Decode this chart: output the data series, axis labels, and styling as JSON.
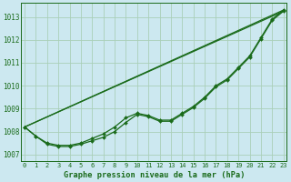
{
  "title": "Graphe pression niveau de la mer (hPa)",
  "bg_color": "#cce8f0",
  "grid_color": "#aacfb8",
  "line_color": "#1a6b1a",
  "text_color": "#1a6b1a",
  "ylim": [
    1006.7,
    1013.6
  ],
  "yticks": [
    1007,
    1008,
    1009,
    1010,
    1011,
    1012,
    1013
  ],
  "xlim": [
    -0.3,
    23.3
  ],
  "xticks": [
    0,
    1,
    2,
    3,
    4,
    5,
    6,
    7,
    8,
    9,
    10,
    11,
    12,
    13,
    14,
    15,
    16,
    17,
    18,
    19,
    20,
    21,
    22,
    23
  ],
  "straight_lines": [
    [
      1008.2,
      1013.3
    ],
    [
      1008.2,
      1013.25
    ]
  ],
  "curved_marker_series": [
    [
      1008.2,
      1007.8,
      1007.5,
      1007.4,
      1007.4,
      1007.5,
      1007.7,
      1007.9,
      1008.2,
      1008.6,
      1008.8,
      1008.7,
      1008.5,
      1008.5,
      1008.8,
      1009.1,
      1009.5,
      1010.0,
      1010.3,
      1010.8,
      1011.3,
      1012.1,
      1012.9,
      1013.3
    ],
    [
      1008.2,
      1007.8,
      1007.45,
      1007.35,
      1007.35,
      1007.45,
      1007.6,
      1007.75,
      1008.0,
      1008.4,
      1008.75,
      1008.65,
      1008.45,
      1008.45,
      1008.75,
      1009.05,
      1009.45,
      1009.95,
      1010.25,
      1010.75,
      1011.25,
      1012.05,
      1012.85,
      1013.25
    ]
  ]
}
